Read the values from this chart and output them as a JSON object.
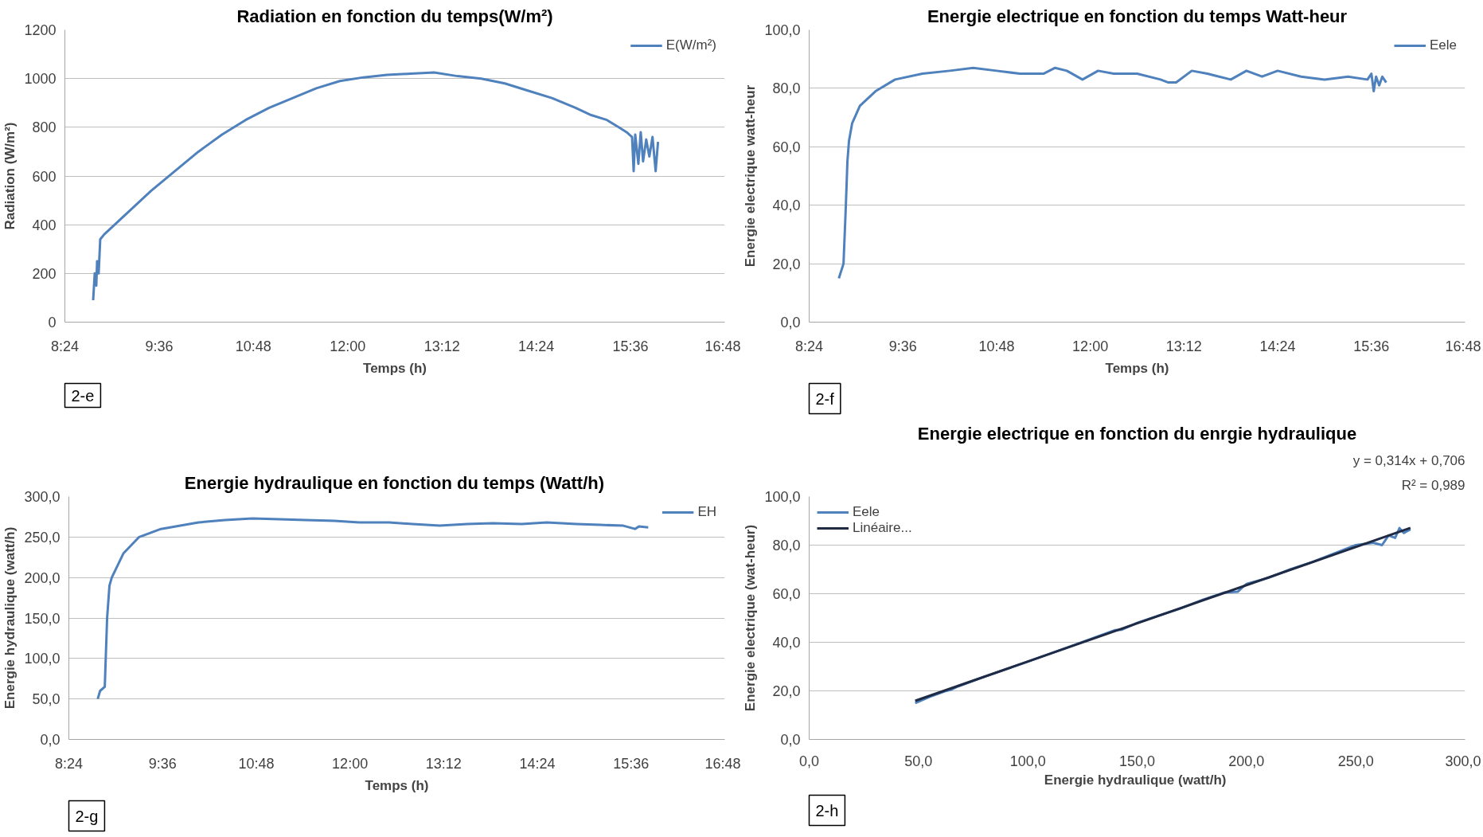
{
  "chart_data": [
    {
      "type": "line",
      "title": "Radiation en fonction du temps(W/m²)",
      "xlabel": "Temps (h)",
      "ylabel": "Radiation (W/m²)",
      "series": [
        {
          "name": "E(W/m²)",
          "color": "#4f81bd",
          "x": [
            8.76,
            8.78,
            8.8,
            8.81,
            8.83,
            8.85,
            8.9,
            9.2,
            9.5,
            9.8,
            10.1,
            10.4,
            10.7,
            11.0,
            11.3,
            11.6,
            11.9,
            12.2,
            12.5,
            12.8,
            13.1,
            13.4,
            13.7,
            14.0,
            14.3,
            14.6,
            14.9,
            15.1,
            15.3,
            15.45,
            15.55,
            15.62,
            15.64,
            15.66,
            15.7,
            15.73,
            15.76,
            15.8,
            15.84,
            15.88,
            15.92,
            15.95
          ],
          "values": [
            90,
            200,
            150,
            250,
            200,
            340,
            360,
            450,
            540,
            620,
            700,
            770,
            830,
            880,
            920,
            960,
            990,
            1005,
            1015,
            1020,
            1025,
            1010,
            1000,
            980,
            950,
            920,
            880,
            850,
            830,
            800,
            780,
            760,
            620,
            770,
            650,
            780,
            660,
            750,
            680,
            760,
            620,
            740
          ]
        }
      ],
      "xlim": [
        8.4,
        16.8
      ],
      "xticks": [
        {
          "value": 8.4,
          "label": "8:24"
        },
        {
          "value": 9.6,
          "label": "9:36"
        },
        {
          "value": 10.8,
          "label": "10:48"
        },
        {
          "value": 12,
          "label": "12:00"
        },
        {
          "value": 13.2,
          "label": "13:12"
        },
        {
          "value": 14.4,
          "label": "14:24"
        },
        {
          "value": 15.6,
          "label": "15:36"
        },
        {
          "value": 16.8,
          "label": "16:48"
        }
      ],
      "ylim": [
        0,
        1200
      ],
      "yticks": [
        0,
        200,
        400,
        600,
        800,
        1000,
        1200
      ],
      "grid": "y",
      "legend": "top right",
      "annotations": [
        "2-e"
      ]
    },
    {
      "type": "line",
      "title": "Energie electrique en fonction du temps Watt-heur",
      "xlabel": "Temps (h)",
      "ylabel": "Energie electrique watt-heur",
      "series": [
        {
          "name": "Eele",
          "color": "#4f81bd",
          "x": [
            8.78,
            8.84,
            8.87,
            8.89,
            8.91,
            8.95,
            9.05,
            9.25,
            9.5,
            9.85,
            10.2,
            10.5,
            10.8,
            11.1,
            11.4,
            11.55,
            11.7,
            11.9,
            12.1,
            12.3,
            12.6,
            12.9,
            13.0,
            13.1,
            13.3,
            13.5,
            13.8,
            14.0,
            14.2,
            14.4,
            14.7,
            15.0,
            15.3,
            15.55,
            15.6,
            15.63,
            15.66,
            15.7,
            15.74,
            15.79
          ],
          "values": [
            15,
            20,
            40,
            55,
            62,
            68,
            74,
            79,
            83,
            85,
            86,
            87,
            86,
            85,
            85,
            87,
            86,
            83,
            86,
            85,
            85,
            83,
            82,
            82,
            86,
            85,
            83,
            86,
            84,
            86,
            84,
            83,
            84,
            83,
            85,
            79,
            84,
            81,
            84,
            82
          ]
        }
      ],
      "xlim": [
        8.4,
        16.8
      ],
      "xticks": [
        {
          "value": 8.4,
          "label": "8:24"
        },
        {
          "value": 9.6,
          "label": "9:36"
        },
        {
          "value": 10.8,
          "label": "10:48"
        },
        {
          "value": 12,
          "label": "12:00"
        },
        {
          "value": 13.2,
          "label": "13:12"
        },
        {
          "value": 14.4,
          "label": "14:24"
        },
        {
          "value": 15.6,
          "label": "15:36"
        },
        {
          "value": 16.8,
          "label": "16:48"
        }
      ],
      "ylim": [
        0,
        100
      ],
      "yticks": [
        {
          "value": 0,
          "label": "0,0"
        },
        {
          "value": 20,
          "label": "20,0"
        },
        {
          "value": 40,
          "label": "40,0"
        },
        {
          "value": 60,
          "label": "60,0"
        },
        {
          "value": 80,
          "label": "80,0"
        },
        {
          "value": 100,
          "label": "100,0"
        }
      ],
      "grid": "y",
      "legend": "top right",
      "annotations": [
        "2-f"
      ]
    },
    {
      "type": "line",
      "title": "Energie hydraulique  en fonction du temps (Watt/h)",
      "xlabel": "Temps (h)",
      "ylabel": "Energie hydraulique (watt/h)",
      "series": [
        {
          "name": "EH",
          "color": "#4f81bd",
          "x": [
            8.77,
            8.8,
            8.86,
            8.89,
            8.92,
            8.95,
            9.1,
            9.3,
            9.58,
            10.06,
            10.4,
            10.75,
            11.1,
            11.43,
            11.8,
            12.12,
            12.5,
            12.8,
            13.15,
            13.5,
            13.83,
            14.2,
            14.52,
            14.9,
            15.2,
            15.5,
            15.65,
            15.7,
            15.82
          ],
          "values": [
            50,
            60,
            65,
            150,
            190,
            200,
            230,
            250,
            260,
            268,
            271,
            273,
            272,
            271,
            270,
            268,
            268,
            266,
            264,
            266,
            267,
            266,
            268,
            266,
            265,
            264,
            260,
            263,
            262
          ]
        }
      ],
      "xlim": [
        8.4,
        16.8
      ],
      "xticks": [
        {
          "value": 8.4,
          "label": "8:24"
        },
        {
          "value": 9.6,
          "label": "9:36"
        },
        {
          "value": 10.8,
          "label": "10:48"
        },
        {
          "value": 12,
          "label": "12:00"
        },
        {
          "value": 13.2,
          "label": "13:12"
        },
        {
          "value": 14.4,
          "label": "14:24"
        },
        {
          "value": 15.6,
          "label": "15:36"
        },
        {
          "value": 16.8,
          "label": "16:48"
        }
      ],
      "ylim": [
        0,
        300
      ],
      "yticks": [
        {
          "value": 0,
          "label": "0,0"
        },
        {
          "value": 50,
          "label": "50,0"
        },
        {
          "value": 100,
          "label": "100,0"
        },
        {
          "value": 150,
          "label": "150,0"
        },
        {
          "value": 200,
          "label": "200,0"
        },
        {
          "value": 250,
          "label": "250,0"
        },
        {
          "value": 300,
          "label": "300,0"
        }
      ],
      "grid": "y",
      "legend": "top right",
      "annotations": [
        "2-g"
      ]
    },
    {
      "type": "line",
      "title": "Energie electrique en fonction du enrgie hydraulique",
      "xlabel": "Energie  hydraulique (watt/h)",
      "ylabel": "Energie electrique (wat-heur)",
      "series": [
        {
          "name": "Eele",
          "color": "#4f81bd",
          "x": [
            48.5,
            55,
            62,
            65,
            68,
            80,
            100,
            120,
            140,
            143,
            150,
            160,
            170,
            180,
            190,
            196,
            198,
            200,
            210,
            220,
            230,
            240,
            250,
            258,
            262,
            265,
            268,
            270,
            272,
            275
          ],
          "values": [
            15,
            17.5,
            19.8,
            20.5,
            21.8,
            25.8,
            32,
            38.5,
            45,
            45.2,
            48,
            51,
            54,
            57.5,
            60.5,
            60.8,
            62.5,
            64,
            66.5,
            70,
            73,
            76.5,
            80,
            81,
            80,
            84,
            83,
            87,
            85,
            86.5
          ]
        },
        {
          "name": "Linéaire...",
          "color": "#1f2a44",
          "x": [
            48.5,
            275
          ],
          "values": [
            15.9,
            87.1
          ]
        }
      ],
      "xlim": [
        0,
        300
      ],
      "xticks": [
        {
          "value": 0,
          "label": "0,0"
        },
        {
          "value": 50,
          "label": "50,0"
        },
        {
          "value": 100,
          "label": "100,0"
        },
        {
          "value": 150,
          "label": "150,0"
        },
        {
          "value": 200,
          "label": "200,0"
        },
        {
          "value": 250,
          "label": "250,0"
        },
        {
          "value": 300,
          "label": "300,0"
        }
      ],
      "ylim": [
        0,
        100
      ],
      "yticks": [
        {
          "value": 0,
          "label": "0,0"
        },
        {
          "value": 20,
          "label": "20,0"
        },
        {
          "value": 40,
          "label": "40,0"
        },
        {
          "value": 60,
          "label": "60,0"
        },
        {
          "value": 80,
          "label": "80,0"
        },
        {
          "value": 100,
          "label": "100,0"
        }
      ],
      "grid": "y",
      "legend": "top left",
      "annotations": [
        "y = 0,314x + 0,706",
        "R² = 0,989",
        "2-h"
      ]
    }
  ]
}
